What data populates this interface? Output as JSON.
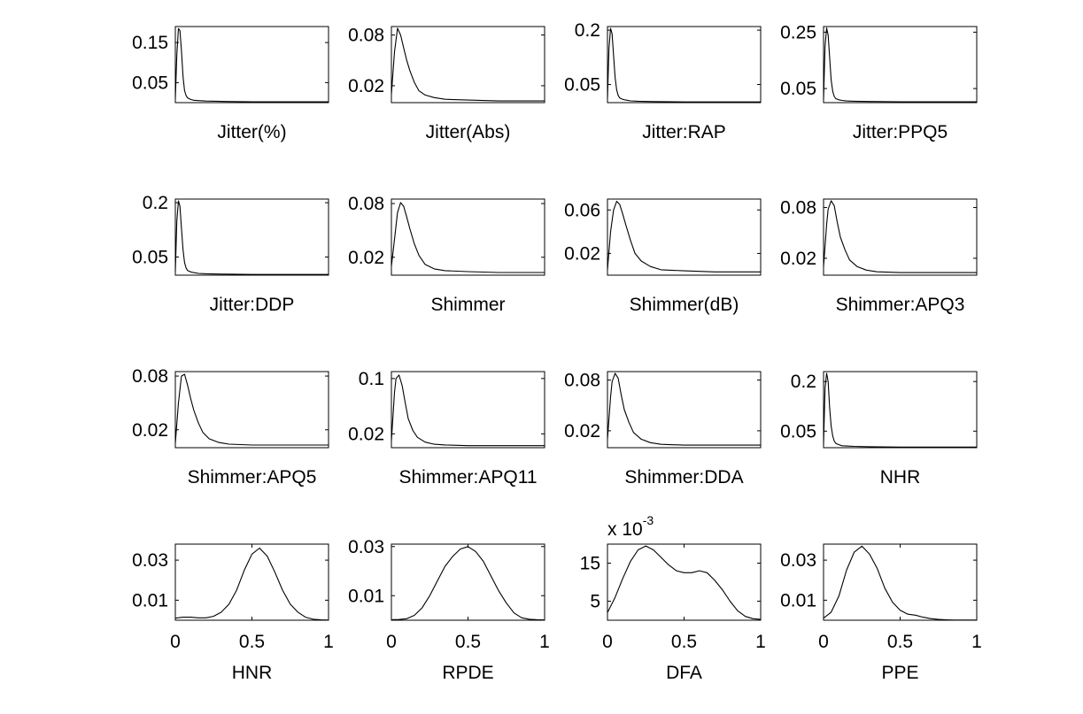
{
  "chart_data": [
    {
      "type": "line",
      "xlabel": "Jitter(%)",
      "ylim": [
        0,
        0.19
      ],
      "yticks": [
        {
          "value": 0.15,
          "label": "0.15"
        },
        {
          "value": 0.05,
          "label": "0.05"
        }
      ],
      "xlim": [
        0,
        1
      ],
      "xticks": [],
      "x": [
        0,
        0.01,
        0.02,
        0.03,
        0.04,
        0.05,
        0.06,
        0.07,
        0.08,
        0.1,
        0.12,
        0.15,
        0.2,
        0.3,
        0.5,
        1
      ],
      "y": [
        0.01,
        0.12,
        0.185,
        0.18,
        0.13,
        0.065,
        0.03,
        0.018,
        0.012,
        0.008,
        0.006,
        0.005,
        0.004,
        0.003,
        0.002,
        0.002
      ]
    },
    {
      "type": "line",
      "xlabel": "Jitter(Abs)",
      "ylim": [
        0,
        0.09
      ],
      "yticks": [
        {
          "value": 0.08,
          "label": "0.08"
        },
        {
          "value": 0.02,
          "label": "0.02"
        }
      ],
      "xlim": [
        0,
        1
      ],
      "xticks": [],
      "x": [
        0,
        0.02,
        0.04,
        0.06,
        0.08,
        0.1,
        0.12,
        0.15,
        0.18,
        0.22,
        0.28,
        0.35,
        0.5,
        0.7,
        1
      ],
      "y": [
        0.01,
        0.06,
        0.088,
        0.08,
        0.065,
        0.05,
        0.038,
        0.024,
        0.014,
        0.009,
        0.006,
        0.004,
        0.003,
        0.002,
        0.002
      ]
    },
    {
      "type": "line",
      "xlabel": "Jitter:RAP",
      "ylim": [
        0,
        0.21
      ],
      "yticks": [
        {
          "value": 0.2,
          "label": "0.2"
        },
        {
          "value": 0.05,
          "label": "0.05"
        }
      ],
      "xlim": [
        0,
        1
      ],
      "xticks": [],
      "x": [
        0,
        0.01,
        0.02,
        0.03,
        0.04,
        0.05,
        0.06,
        0.07,
        0.08,
        0.1,
        0.12,
        0.15,
        0.2,
        0.3,
        0.5,
        1
      ],
      "y": [
        0.01,
        0.15,
        0.205,
        0.19,
        0.13,
        0.07,
        0.035,
        0.02,
        0.013,
        0.009,
        0.007,
        0.005,
        0.004,
        0.003,
        0.002,
        0.002
      ]
    },
    {
      "type": "line",
      "xlabel": "Jitter:PPQ5",
      "ylim": [
        0,
        0.27
      ],
      "yticks": [
        {
          "value": 0.25,
          "label": "0.25"
        },
        {
          "value": 0.05,
          "label": "0.05"
        }
      ],
      "xlim": [
        0,
        1
      ],
      "xticks": [],
      "x": [
        0,
        0.01,
        0.02,
        0.03,
        0.04,
        0.05,
        0.06,
        0.07,
        0.08,
        0.1,
        0.12,
        0.15,
        0.2,
        0.3,
        0.5,
        1
      ],
      "y": [
        0.01,
        0.2,
        0.265,
        0.24,
        0.16,
        0.08,
        0.04,
        0.022,
        0.014,
        0.01,
        0.008,
        0.006,
        0.005,
        0.004,
        0.003,
        0.003
      ]
    },
    {
      "type": "line",
      "xlabel": "Jitter:DDP",
      "ylim": [
        0,
        0.21
      ],
      "yticks": [
        {
          "value": 0.2,
          "label": "0.2"
        },
        {
          "value": 0.05,
          "label": "0.05"
        }
      ],
      "xlim": [
        0,
        1
      ],
      "xticks": [],
      "x": [
        0,
        0.01,
        0.02,
        0.03,
        0.04,
        0.05,
        0.06,
        0.07,
        0.08,
        0.1,
        0.12,
        0.15,
        0.2,
        0.3,
        0.5,
        1
      ],
      "y": [
        0.01,
        0.15,
        0.205,
        0.19,
        0.13,
        0.07,
        0.035,
        0.02,
        0.013,
        0.009,
        0.007,
        0.005,
        0.004,
        0.003,
        0.002,
        0.002
      ]
    },
    {
      "type": "line",
      "xlabel": "Shimmer",
      "ylim": [
        0,
        0.085
      ],
      "yticks": [
        {
          "value": 0.08,
          "label": "0.08"
        },
        {
          "value": 0.02,
          "label": "0.02"
        }
      ],
      "xlim": [
        0,
        1
      ],
      "xticks": [],
      "x": [
        0,
        0.02,
        0.04,
        0.06,
        0.08,
        0.1,
        0.12,
        0.15,
        0.18,
        0.22,
        0.28,
        0.35,
        0.5,
        0.7,
        1
      ],
      "y": [
        0.01,
        0.04,
        0.07,
        0.081,
        0.077,
        0.065,
        0.052,
        0.035,
        0.022,
        0.012,
        0.007,
        0.005,
        0.004,
        0.003,
        0.003
      ]
    },
    {
      "type": "line",
      "xlabel": "Shimmer(dB)",
      "ylim": [
        0,
        0.07
      ],
      "yticks": [
        {
          "value": 0.06,
          "label": "0.06"
        },
        {
          "value": 0.02,
          "label": "0.02"
        }
      ],
      "xlim": [
        0,
        1
      ],
      "xticks": [],
      "x": [
        0,
        0.02,
        0.04,
        0.06,
        0.08,
        0.1,
        0.12,
        0.15,
        0.18,
        0.22,
        0.28,
        0.35,
        0.5,
        0.7,
        1
      ],
      "y": [
        0.005,
        0.04,
        0.06,
        0.068,
        0.065,
        0.056,
        0.046,
        0.032,
        0.02,
        0.013,
        0.008,
        0.005,
        0.004,
        0.003,
        0.003
      ]
    },
    {
      "type": "line",
      "xlabel": "Shimmer:APQ3",
      "ylim": [
        0,
        0.09
      ],
      "yticks": [
        {
          "value": 0.08,
          "label": "0.08"
        },
        {
          "value": 0.02,
          "label": "0.02"
        }
      ],
      "xlim": [
        0,
        1
      ],
      "xticks": [],
      "x": [
        0,
        0.02,
        0.03,
        0.05,
        0.07,
        0.09,
        0.11,
        0.14,
        0.17,
        0.22,
        0.28,
        0.35,
        0.5,
        0.7,
        1
      ],
      "y": [
        0.01,
        0.06,
        0.078,
        0.088,
        0.082,
        0.062,
        0.045,
        0.03,
        0.018,
        0.01,
        0.006,
        0.004,
        0.003,
        0.003,
        0.003
      ]
    },
    {
      "type": "line",
      "xlabel": "Shimmer:APQ5",
      "ylim": [
        0,
        0.085
      ],
      "yticks": [
        {
          "value": 0.08,
          "label": "0.08"
        },
        {
          "value": 0.02,
          "label": "0.02"
        }
      ],
      "xlim": [
        0,
        1
      ],
      "xticks": [],
      "x": [
        0,
        0.02,
        0.04,
        0.06,
        0.08,
        0.1,
        0.12,
        0.15,
        0.18,
        0.22,
        0.28,
        0.35,
        0.5,
        0.7,
        1
      ],
      "y": [
        0.005,
        0.05,
        0.08,
        0.082,
        0.07,
        0.055,
        0.042,
        0.028,
        0.017,
        0.01,
        0.006,
        0.004,
        0.003,
        0.003,
        0.003
      ]
    },
    {
      "type": "line",
      "xlabel": "Shimmer:APQ11",
      "ylim": [
        0,
        0.11
      ],
      "yticks": [
        {
          "value": 0.1,
          "label": "0.1"
        },
        {
          "value": 0.02,
          "label": "0.02"
        }
      ],
      "xlim": [
        0,
        1
      ],
      "xticks": [],
      "x": [
        0,
        0.02,
        0.03,
        0.05,
        0.07,
        0.09,
        0.11,
        0.14,
        0.17,
        0.22,
        0.28,
        0.35,
        0.5,
        0.7,
        1
      ],
      "y": [
        0.01,
        0.08,
        0.1,
        0.105,
        0.09,
        0.065,
        0.042,
        0.025,
        0.015,
        0.008,
        0.005,
        0.004,
        0.003,
        0.003,
        0.003
      ]
    },
    {
      "type": "line",
      "xlabel": "Shimmer:DDA",
      "ylim": [
        0,
        0.09
      ],
      "yticks": [
        {
          "value": 0.08,
          "label": "0.08"
        },
        {
          "value": 0.02,
          "label": "0.02"
        }
      ],
      "xlim": [
        0,
        1
      ],
      "xticks": [],
      "x": [
        0,
        0.02,
        0.03,
        0.05,
        0.07,
        0.09,
        0.11,
        0.14,
        0.17,
        0.22,
        0.28,
        0.35,
        0.5,
        0.7,
        1
      ],
      "y": [
        0.01,
        0.06,
        0.078,
        0.088,
        0.082,
        0.062,
        0.045,
        0.03,
        0.018,
        0.01,
        0.006,
        0.004,
        0.003,
        0.003,
        0.003
      ]
    },
    {
      "type": "line",
      "xlabel": "NHR",
      "ylim": [
        0,
        0.23
      ],
      "yticks": [
        {
          "value": 0.2,
          "label": "0.2"
        },
        {
          "value": 0.05,
          "label": "0.05"
        }
      ],
      "xlim": [
        0,
        1
      ],
      "xticks": [],
      "x": [
        0,
        0.01,
        0.02,
        0.03,
        0.04,
        0.05,
        0.06,
        0.07,
        0.08,
        0.1,
        0.12,
        0.15,
        0.2,
        0.3,
        0.5,
        1
      ],
      "y": [
        0.01,
        0.18,
        0.225,
        0.2,
        0.12,
        0.065,
        0.035,
        0.02,
        0.013,
        0.009,
        0.006,
        0.005,
        0.004,
        0.003,
        0.002,
        0.002
      ]
    },
    {
      "type": "line",
      "xlabel": "HNR",
      "ylim": [
        0,
        0.038
      ],
      "yticks": [
        {
          "value": 0.03,
          "label": "0.03"
        },
        {
          "value": 0.01,
          "label": "0.01"
        }
      ],
      "xlim": [
        0,
        1
      ],
      "xticks": [
        {
          "value": 0,
          "label": "0"
        },
        {
          "value": 0.5,
          "label": "0.5"
        },
        {
          "value": 1,
          "label": "1"
        }
      ],
      "x": [
        0,
        0.05,
        0.1,
        0.15,
        0.2,
        0.25,
        0.3,
        0.35,
        0.4,
        0.45,
        0.5,
        0.55,
        0.6,
        0.65,
        0.7,
        0.75,
        0.8,
        0.85,
        0.9,
        0.95,
        1
      ],
      "y": [
        0.001,
        0.0015,
        0.0015,
        0.0012,
        0.0012,
        0.002,
        0.004,
        0.008,
        0.015,
        0.025,
        0.033,
        0.036,
        0.032,
        0.024,
        0.015,
        0.008,
        0.004,
        0.0015,
        0.0005,
        0.0002,
        0.0001
      ]
    },
    {
      "type": "line",
      "xlabel": "RPDE",
      "ylim": [
        0,
        0.031
      ],
      "yticks": [
        {
          "value": 0.03,
          "label": "0.03"
        },
        {
          "value": 0.01,
          "label": "0.01"
        }
      ],
      "xlim": [
        0,
        1
      ],
      "xticks": [
        {
          "value": 0,
          "label": "0"
        },
        {
          "value": 0.5,
          "label": "0.5"
        },
        {
          "value": 1,
          "label": "1"
        }
      ],
      "x": [
        0,
        0.05,
        0.1,
        0.15,
        0.2,
        0.25,
        0.3,
        0.35,
        0.4,
        0.45,
        0.5,
        0.55,
        0.6,
        0.65,
        0.7,
        0.75,
        0.8,
        0.85,
        0.9,
        0.95,
        1
      ],
      "y": [
        0.0002,
        0.0003,
        0.0006,
        0.002,
        0.005,
        0.01,
        0.016,
        0.022,
        0.026,
        0.029,
        0.03,
        0.028,
        0.024,
        0.018,
        0.012,
        0.007,
        0.003,
        0.001,
        0.0004,
        0.0002,
        0.0001
      ]
    },
    {
      "type": "line",
      "xlabel": "DFA",
      "ylim": [
        0,
        20
      ],
      "yticks": [
        {
          "value": 15,
          "label": "15"
        },
        {
          "value": 5,
          "label": "5"
        }
      ],
      "xlim": [
        0,
        1
      ],
      "xticks": [
        {
          "value": 0,
          "label": "0"
        },
        {
          "value": 0.5,
          "label": "0.5"
        },
        {
          "value": 1,
          "label": "1"
        }
      ],
      "x": [
        0,
        0.05,
        0.1,
        0.15,
        0.2,
        0.25,
        0.3,
        0.35,
        0.4,
        0.45,
        0.5,
        0.55,
        0.6,
        0.65,
        0.7,
        0.75,
        0.8,
        0.85,
        0.9,
        0.95,
        1
      ],
      "y": [
        2,
        6,
        11,
        15.5,
        18.5,
        19.5,
        18.5,
        16.5,
        14.5,
        13,
        12.5,
        12.5,
        13,
        12.5,
        10.5,
        8,
        5,
        2.5,
        1,
        0.4,
        0.2
      ],
      "scale_label": "x 10",
      "scale_exponent": "-3"
    },
    {
      "type": "line",
      "xlabel": "PPE",
      "ylim": [
        0,
        0.038
      ],
      "yticks": [
        {
          "value": 0.03,
          "label": "0.03"
        },
        {
          "value": 0.01,
          "label": "0.01"
        }
      ],
      "xlim": [
        0,
        1
      ],
      "xticks": [
        {
          "value": 0,
          "label": "0"
        },
        {
          "value": 0.5,
          "label": "0.5"
        },
        {
          "value": 1,
          "label": "1"
        }
      ],
      "x": [
        0,
        0.05,
        0.1,
        0.15,
        0.2,
        0.25,
        0.3,
        0.35,
        0.4,
        0.45,
        0.5,
        0.55,
        0.6,
        0.65,
        0.7,
        0.75,
        0.8,
        0.85,
        0.9,
        0.95,
        1
      ],
      "y": [
        0.001,
        0.004,
        0.012,
        0.025,
        0.034,
        0.037,
        0.033,
        0.026,
        0.016,
        0.009,
        0.005,
        0.003,
        0.0025,
        0.0015,
        0.0008,
        0.0004,
        0.0002,
        0.0001,
        0.0001,
        0.0001,
        0.0001
      ]
    }
  ]
}
